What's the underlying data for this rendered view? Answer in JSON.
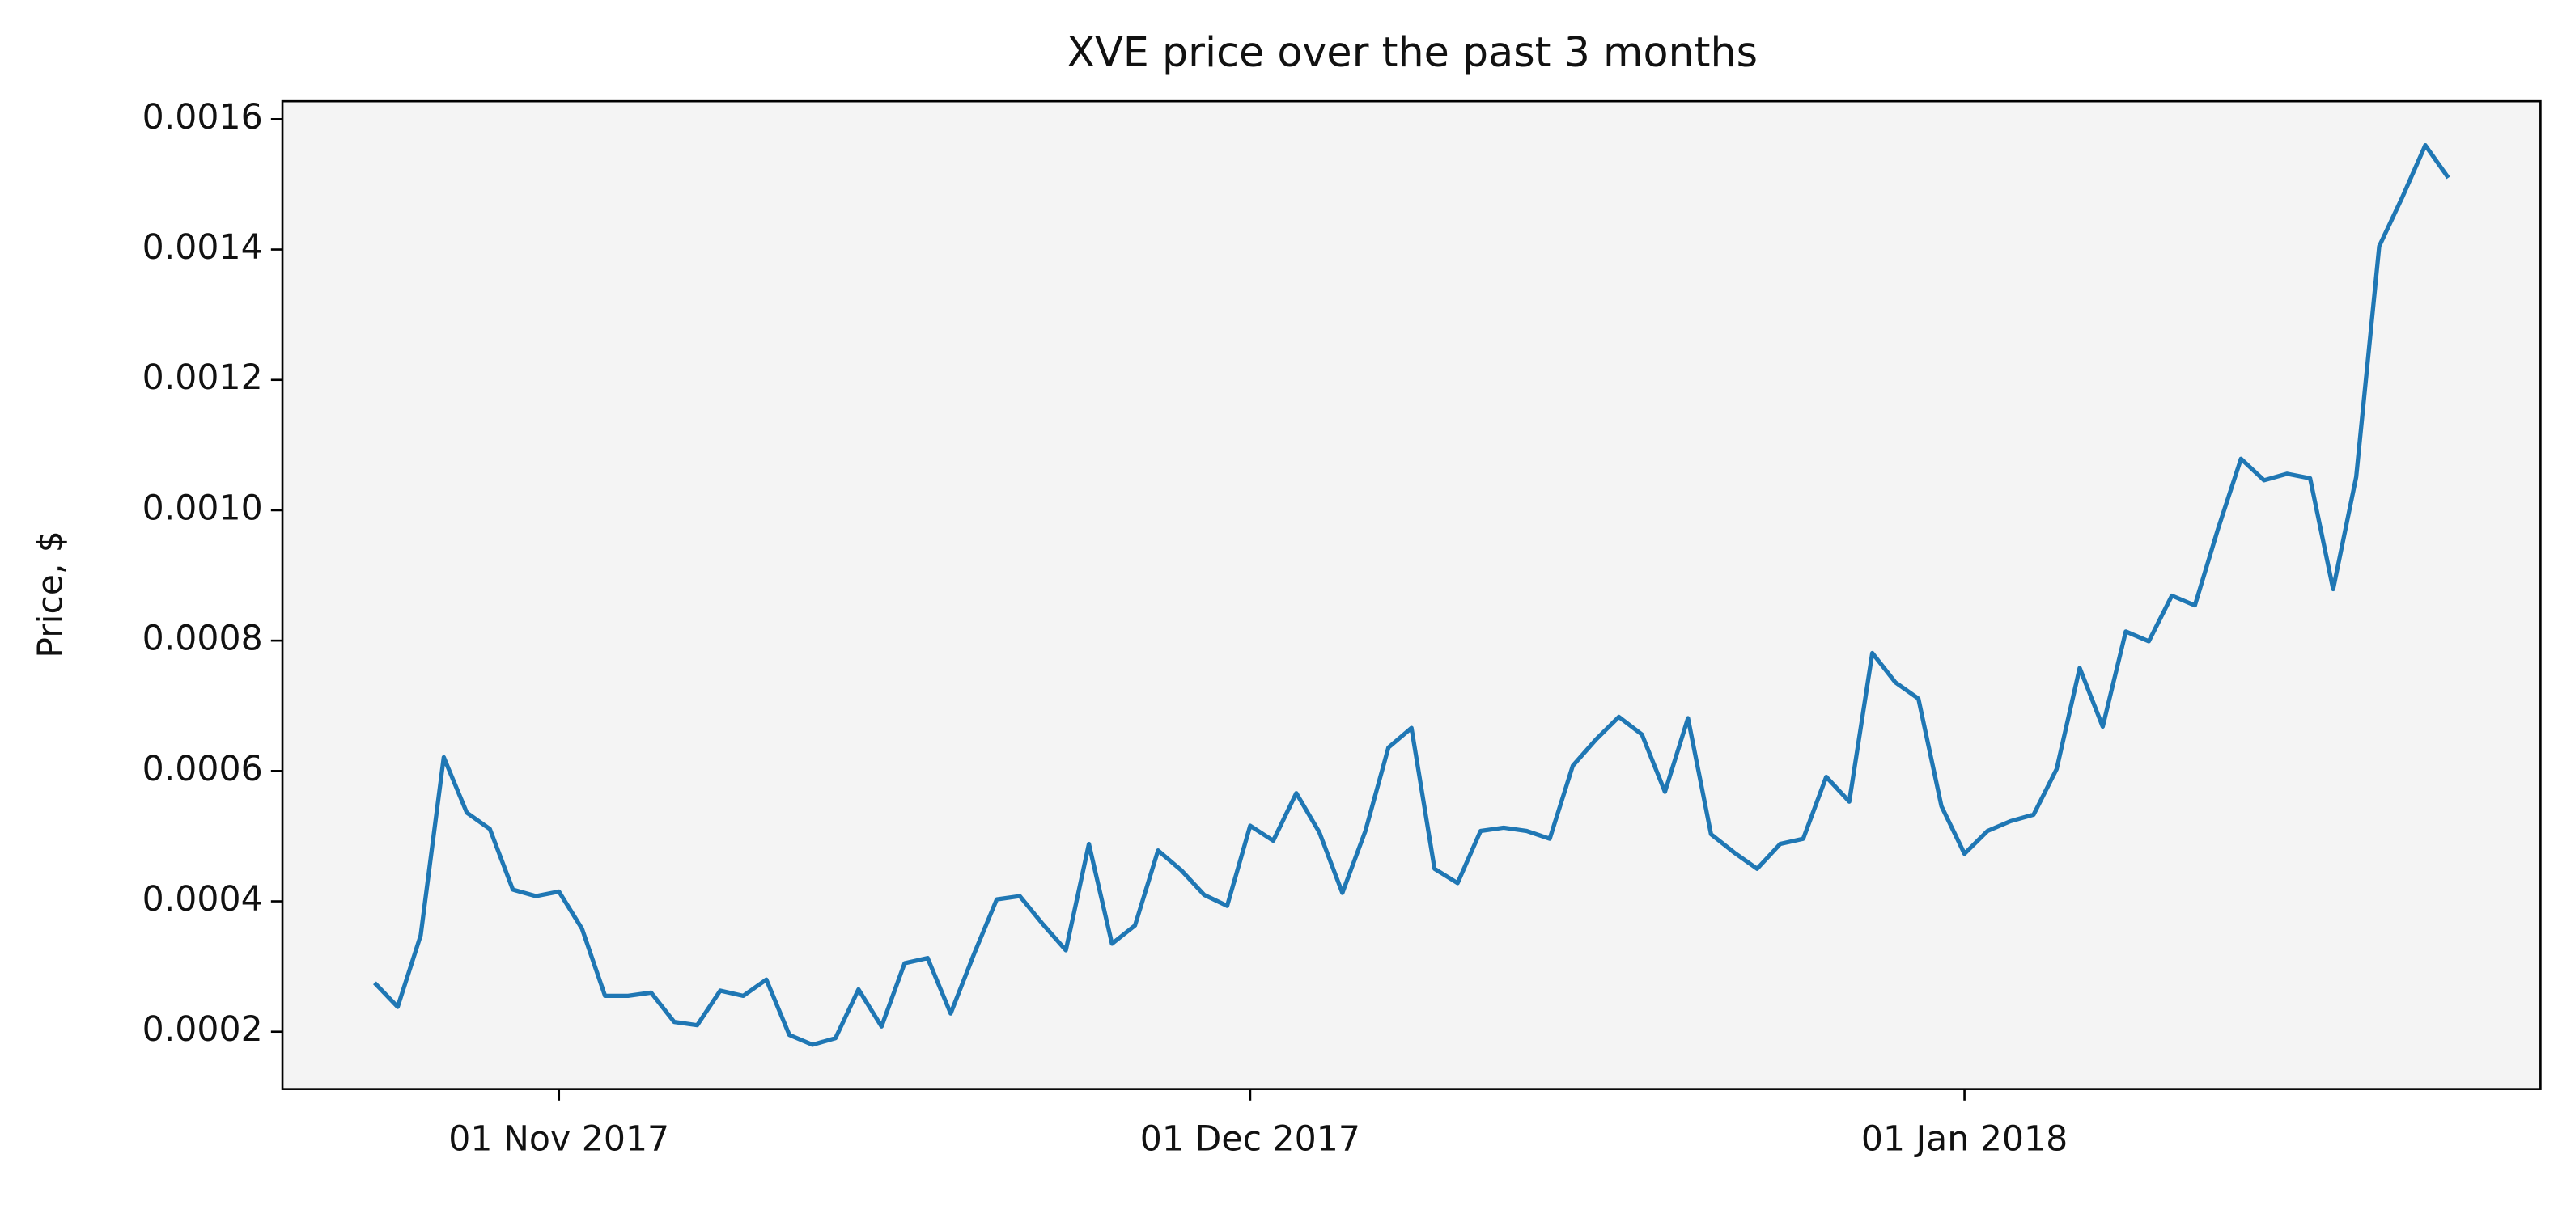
{
  "chart_data": {
    "type": "line",
    "title": "XVE price over the past 3 months",
    "y_label": "Price, $",
    "x": [
      "2017-10-24",
      "2017-10-25",
      "2017-10-26",
      "2017-10-27",
      "2017-10-28",
      "2017-10-29",
      "2017-10-30",
      "2017-10-31",
      "2017-11-01",
      "2017-11-02",
      "2017-11-03",
      "2017-11-04",
      "2017-11-05",
      "2017-11-06",
      "2017-11-07",
      "2017-11-08",
      "2017-11-09",
      "2017-11-10",
      "2017-11-11",
      "2017-11-12",
      "2017-11-13",
      "2017-11-14",
      "2017-11-15",
      "2017-11-16",
      "2017-11-17",
      "2017-11-18",
      "2017-11-19",
      "2017-11-20",
      "2017-11-21",
      "2017-11-22",
      "2017-11-23",
      "2017-11-24",
      "2017-11-25",
      "2017-11-26",
      "2017-11-27",
      "2017-11-28",
      "2017-11-29",
      "2017-11-30",
      "2017-12-01",
      "2017-12-02",
      "2017-12-03",
      "2017-12-04",
      "2017-12-05",
      "2017-12-06",
      "2017-12-07",
      "2017-12-08",
      "2017-12-09",
      "2017-12-10",
      "2017-12-11",
      "2017-12-12",
      "2017-12-13",
      "2017-12-14",
      "2017-12-15",
      "2017-12-16",
      "2017-12-17",
      "2017-12-18",
      "2017-12-19",
      "2017-12-20",
      "2017-12-21",
      "2017-12-22",
      "2017-12-23",
      "2017-12-24",
      "2017-12-25",
      "2017-12-26",
      "2017-12-27",
      "2017-12-28",
      "2017-12-29",
      "2017-12-30",
      "2017-12-31",
      "2018-01-01",
      "2018-01-02",
      "2018-01-03",
      "2018-01-04",
      "2018-01-05",
      "2018-01-06",
      "2018-01-07",
      "2018-01-08",
      "2018-01-09",
      "2018-01-10",
      "2018-01-11",
      "2018-01-12",
      "2018-01-13",
      "2018-01-14",
      "2018-01-15",
      "2018-01-16",
      "2018-01-17",
      "2018-01-18",
      "2018-01-19",
      "2018-01-20",
      "2018-01-21",
      "2018-01-22"
    ],
    "values": [
      0.000275,
      0.000238,
      0.000348,
      0.000621,
      0.000536,
      0.000511,
      0.000418,
      0.000408,
      0.000415,
      0.000358,
      0.000255,
      0.000255,
      0.00026,
      0.000215,
      0.00021,
      0.000263,
      0.000255,
      0.00028,
      0.000195,
      0.00018,
      0.00019,
      0.000265,
      0.000208,
      0.000305,
      0.000313,
      0.000228,
      0.000318,
      0.000403,
      0.000408,
      0.000365,
      0.000325,
      0.000488,
      0.000335,
      0.000363,
      0.000478,
      0.000448,
      0.00041,
      0.000393,
      0.000516,
      0.000493,
      0.000566,
      0.000506,
      0.000413,
      0.000508,
      0.000636,
      0.000666,
      0.00045,
      0.000428,
      0.000508,
      0.000513,
      0.000508,
      0.000496,
      0.000608,
      0.000648,
      0.000683,
      0.000656,
      0.000568,
      0.000681,
      0.000503,
      0.000475,
      0.00045,
      0.000488,
      0.000496,
      0.000591,
      0.000553,
      0.000781,
      0.000736,
      0.000711,
      0.000546,
      0.000473,
      0.000508,
      0.000523,
      0.000533,
      0.000603,
      0.000758,
      0.000668,
      0.000814,
      0.000799,
      0.000869,
      0.000854,
      0.000971,
      0.001079,
      0.001046,
      0.001056,
      0.001049,
      0.000879,
      0.001051,
      0.001405,
      0.00148,
      0.00156,
      0.00151
    ],
    "color": "#1f77b4",
    "xlim": [
      "2017-10-20",
      "2018-01-26"
    ],
    "xticks": [
      {
        "value": "2017-11-01",
        "label": "01 Nov 2017"
      },
      {
        "value": "2017-12-01",
        "label": "01 Dec 2017"
      },
      {
        "value": "2018-01-01",
        "label": "01 Jan 2018"
      }
    ],
    "ylim": [
      0.000112,
      0.0016275
    ],
    "yticks": [
      0.0002,
      0.0004,
      0.0006,
      0.0008,
      {
        "value": 0.001,
        "label": "0.0010"
      },
      0.0012,
      0.0014,
      0.0016
    ],
    "background": "#f4f4f4"
  }
}
